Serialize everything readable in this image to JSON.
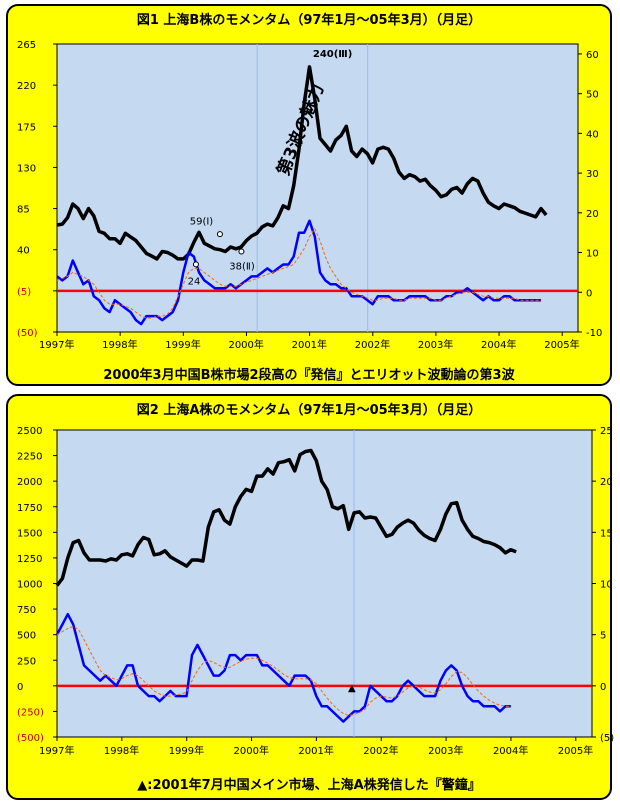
{
  "chart_data": [
    {
      "type": "line",
      "title": "図1 上海B株のモメンタム（97年1月～05年3月）（月足）",
      "caption": "2000年3月中国B株市場2段高の『発信』とエリオット波動論の第3波",
      "x_range": [
        1997.0,
        2005.25
      ],
      "x_ticks": [
        "1997年",
        "1998年",
        "1999年",
        "2000年",
        "2001年",
        "2002年",
        "2003年",
        "2004年",
        "2005年"
      ],
      "y_left_ticks": [
        "265",
        "220",
        "175",
        "130",
        "85",
        "40",
        "(5)",
        "(50)"
      ],
      "y_left_range": [
        -50,
        265
      ],
      "y_right_ticks": [
        "60",
        "50",
        "40",
        "30",
        "20",
        "10",
        "0",
        "-10"
      ],
      "y_right_range": [
        -10,
        62.5
      ],
      "vlines": [
        2000.17,
        2001.92
      ],
      "zero_line_left": -5,
      "colors": {
        "index": "#000000",
        "momentum": "#0000ff",
        "signal": "#ff6600",
        "zero": "#ff0000",
        "vline": "#99bbee"
      },
      "series": [
        {
          "role": "index",
          "axis": "left",
          "x_start": 1997.0,
          "x_step": 0.0833,
          "values": [
            67,
            68,
            75,
            90,
            85,
            74,
            85,
            77,
            60,
            58,
            52,
            52,
            47,
            58,
            54,
            50,
            43,
            36,
            33,
            30,
            38,
            37,
            34,
            30,
            30,
            35,
            48,
            59,
            47,
            44,
            41,
            40,
            38,
            43,
            41,
            43,
            50,
            55,
            58,
            65,
            68,
            66,
            75,
            88,
            85,
            110,
            150,
            200,
            240,
            205,
            162,
            155,
            148,
            160,
            165,
            175,
            148,
            142,
            150,
            145,
            135,
            150,
            152,
            150,
            140,
            125,
            118,
            122,
            120,
            115,
            117,
            110,
            105,
            98,
            100,
            106,
            108,
            102,
            112,
            118,
            115,
            102,
            92,
            88,
            85,
            90,
            88,
            86,
            82,
            80,
            78,
            76,
            85,
            78
          ]
        },
        {
          "role": "momentum",
          "axis": "right",
          "x_start": 1997.0,
          "x_step": 0.0833,
          "values": [
            4,
            3,
            4,
            8,
            5,
            2,
            3,
            -1,
            -2,
            -4,
            -5,
            -2,
            -3,
            -4,
            -5,
            -7,
            -8,
            -6,
            -6,
            -6,
            -7,
            -6,
            -5,
            -2,
            5,
            10,
            9,
            5,
            3,
            2,
            1,
            1,
            1,
            2,
            1,
            2,
            3,
            4,
            4,
            5,
            6,
            5,
            6,
            7,
            7,
            9,
            15,
            15,
            18,
            14,
            5,
            3,
            2,
            2,
            1,
            1,
            -1,
            -1,
            -1,
            -2,
            -3,
            -1,
            -1,
            -1,
            -2,
            -2,
            -2,
            -1,
            -1,
            -1,
            -1,
            -2,
            -2,
            -2,
            -1,
            -1,
            0,
            0,
            1,
            0,
            -1,
            -2,
            -1,
            -2,
            -2,
            -1,
            -1,
            -2,
            -2,
            -2,
            -2,
            -2,
            -2
          ]
        },
        {
          "role": "signal",
          "axis": "right",
          "x_start": 1997.0,
          "x_step": 0.0833,
          "values": [
            3,
            3.5,
            4,
            5,
            4.5,
            4,
            3,
            2,
            0,
            -2,
            -3,
            -3,
            -3,
            -3.5,
            -4,
            -5,
            -6,
            -6.5,
            -6.5,
            -6,
            -6,
            -5.5,
            -4,
            -1,
            2,
            5,
            6,
            6,
            5,
            4,
            3,
            2,
            1.5,
            1.5,
            1.5,
            2,
            2.5,
            3,
            3.5,
            4,
            4.5,
            5,
            5.5,
            6,
            6.5,
            7,
            9,
            11,
            14,
            16,
            13,
            9,
            6,
            4,
            2,
            1,
            0,
            -0.5,
            -1,
            -1.5,
            -2,
            -2,
            -1.5,
            -1.5,
            -1.5,
            -2,
            -2,
            -1.5,
            -1.5,
            -1.5,
            -1.5,
            -1.5,
            -2,
            -2,
            -1.5,
            -1,
            -0.5,
            0,
            0,
            0,
            -0.5,
            -1,
            -1,
            -1.5,
            -1.5,
            -1.5,
            -1.5,
            -1.5,
            -2,
            -2,
            -2,
            -2,
            -2
          ]
        }
      ],
      "annotations": [
        {
          "text": "240(Ⅲ)",
          "x": 2001.4,
          "y": 240
        },
        {
          "text": "59(Ⅰ)",
          "x": 1999.45,
          "y": 59
        },
        {
          "text": "24",
          "x": 1999.1,
          "y": 24
        },
        {
          "text": "38(Ⅱ)",
          "x": 1999.95,
          "y": 38
        },
        {
          "text": "第3波の魅力",
          "x": 2000.65,
          "y": 120
        }
      ]
    },
    {
      "type": "line",
      "title": "図2 上海A株のモメンタム（97年1月～05年3月）（月足）",
      "caption": "▲:2001年7月中国メイン市場、上海A株発信した『警鐘』",
      "x_range": [
        1997.0,
        2005.25
      ],
      "x_ticks": [
        "1997年",
        "1998年",
        "1999年",
        "2000年",
        "2001年",
        "2002年",
        "2003年",
        "2004年",
        "2005年"
      ],
      "y_left_ticks": [
        "2500",
        "2250",
        "2000",
        "1750",
        "1500",
        "1250",
        "1000",
        "750",
        "500",
        "250",
        "0",
        "(250)",
        "(500)"
      ],
      "y_left_range": [
        -500,
        2500
      ],
      "y_right_ticks": [
        "25",
        "20",
        "15",
        "10",
        "5",
        "0",
        "(5)"
      ],
      "y_right_range": [
        -5,
        25
      ],
      "vlines": [
        2001.58
      ],
      "zero_line_left": 0,
      "marker": {
        "symbol": "▲",
        "x": 2001.58,
        "y": 0
      },
      "colors": {
        "index": "#000000",
        "momentum": "#0000ff",
        "signal": "#ff6600",
        "zero": "#ff0000",
        "vline": "#99bbee"
      },
      "series": [
        {
          "role": "index",
          "axis": "left",
          "x_start": 1997.0,
          "x_step": 0.0833,
          "values": [
            980,
            1050,
            1250,
            1400,
            1420,
            1300,
            1230,
            1230,
            1230,
            1220,
            1240,
            1230,
            1280,
            1290,
            1270,
            1380,
            1450,
            1430,
            1280,
            1290,
            1320,
            1260,
            1230,
            1200,
            1170,
            1230,
            1230,
            1220,
            1550,
            1700,
            1720,
            1620,
            1580,
            1750,
            1850,
            1920,
            1900,
            2050,
            2050,
            2120,
            2070,
            2180,
            2190,
            2210,
            2100,
            2260,
            2290,
            2300,
            2200,
            2000,
            1920,
            1750,
            1730,
            1760,
            1530,
            1690,
            1700,
            1640,
            1650,
            1640,
            1550,
            1460,
            1480,
            1550,
            1590,
            1620,
            1590,
            1520,
            1470,
            1440,
            1420,
            1530,
            1680,
            1780,
            1790,
            1620,
            1530,
            1460,
            1440,
            1410,
            1400,
            1380,
            1350,
            1300,
            1330,
            1310
          ]
        },
        {
          "role": "momentum",
          "axis": "right",
          "x_start": 1997.0,
          "x_step": 0.0833,
          "values": [
            5,
            6,
            7,
            6,
            4,
            2,
            1.5,
            1,
            0.5,
            1,
            0.5,
            0,
            1,
            2,
            2,
            0,
            -0.5,
            -1,
            -1,
            -1.5,
            -1,
            -0.5,
            -1,
            -1,
            -1,
            3,
            4,
            3,
            2,
            1,
            1,
            1.5,
            3,
            3,
            2.5,
            3,
            3,
            3,
            2,
            2,
            1.5,
            1,
            0.5,
            0,
            1,
            1,
            1,
            0.5,
            -1,
            -2,
            -2,
            -2.5,
            -3,
            -3.5,
            -3,
            -2.5,
            -2.5,
            -2,
            0,
            -0.5,
            -1,
            -1.5,
            -1.5,
            -1,
            0,
            0.5,
            0,
            -0.5,
            -1,
            -1,
            -1,
            0.5,
            1.5,
            2,
            1.5,
            0,
            -1,
            -1.5,
            -1.5,
            -2,
            -2,
            -2,
            -2.5,
            -2,
            -2
          ]
        },
        {
          "role": "signal",
          "axis": "right",
          "x_start": 1997.0,
          "x_step": 0.0833,
          "values": [
            5,
            5.3,
            5.6,
            5.8,
            5.5,
            4.5,
            3.5,
            2.5,
            1.5,
            1,
            0.8,
            0.6,
            0.7,
            1,
            1.2,
            1,
            0.5,
            0,
            -0.5,
            -0.8,
            -1,
            -1,
            -0.9,
            -0.8,
            -0.6,
            0.5,
            1.5,
            2.2,
            2.5,
            2.3,
            2,
            1.8,
            1.8,
            2.1,
            2.4,
            2.6,
            2.7,
            2.7,
            2.5,
            2.2,
            1.9,
            1.5,
            1.1,
            0.8,
            0.7,
            0.7,
            0.7,
            0.6,
            0.2,
            -0.5,
            -1.2,
            -1.8,
            -2.3,
            -2.7,
            -2.9,
            -2.8,
            -2.6,
            -2.3,
            -1.6,
            -1.2,
            -1.0,
            -1.1,
            -1.2,
            -1.0,
            -0.6,
            -0.2,
            0,
            -0.1,
            -0.4,
            -0.6,
            -0.7,
            -0.4,
            0.2,
            0.9,
            1.4,
            1.3,
            0.8,
            0.1,
            -0.5,
            -1.0,
            -1.4,
            -1.7,
            -1.9,
            -2.0,
            -2.0
          ]
        }
      ]
    }
  ]
}
